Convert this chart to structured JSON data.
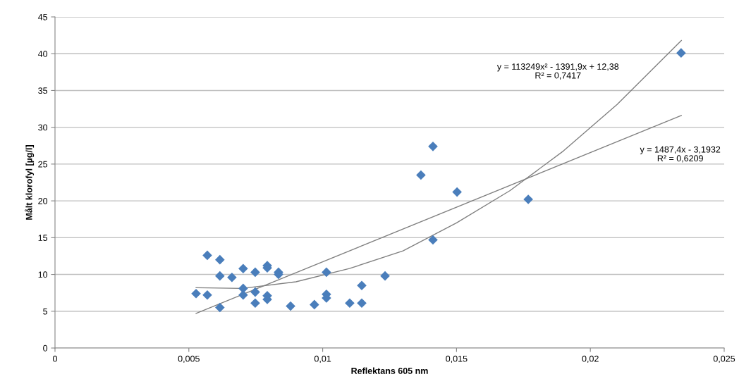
{
  "chart_data": {
    "type": "scatter",
    "xlabel": "Reflektans 605 nm",
    "ylabel": "Målt klorofyl [µg/l]",
    "xlim": [
      0,
      0.025
    ],
    "xticks": [
      0,
      {
        "value": 0.005,
        "label": "0,005"
      },
      {
        "value": 0.01,
        "label": "0,01"
      },
      {
        "value": 0.015,
        "label": "0,015"
      },
      {
        "value": 0.02,
        "label": "0,02"
      },
      {
        "value": 0.025,
        "label": "0,025"
      }
    ],
    "ylim": [
      0,
      45
    ],
    "yticks": [
      0,
      5,
      10,
      15,
      20,
      25,
      30,
      35,
      40,
      45
    ],
    "grid": "y",
    "legend": false,
    "series": [
      {
        "color": "#4a7ebb",
        "marker": "diamond",
        "x": [
          0.00527,
          0.00569,
          0.00569,
          0.00616,
          0.00616,
          0.00616,
          0.00661,
          0.00703,
          0.00703,
          0.00703,
          0.00748,
          0.00748,
          0.00748,
          0.00793,
          0.00793,
          0.00793,
          0.00793,
          0.00835,
          0.00835,
          0.0088,
          0.00969,
          0.01014,
          0.01014,
          0.01014,
          0.01101,
          0.01146,
          0.01146,
          0.01233,
          0.01367,
          0.01412,
          0.01412,
          0.01502,
          0.01768,
          0.02339
        ],
        "values": [
          7.4,
          7.2,
          12.6,
          12.0,
          9.8,
          5.5,
          9.6,
          10.8,
          8.1,
          7.2,
          10.3,
          7.6,
          6.1,
          11.2,
          10.9,
          7.1,
          6.6,
          10.3,
          10.0,
          5.7,
          5.9,
          10.3,
          7.3,
          6.8,
          6.1,
          8.5,
          6.1,
          9.8,
          23.5,
          27.4,
          14.7,
          21.2,
          20.2,
          40.1
        ]
      },
      {
        "type": "line",
        "color": "#808080",
        "marker": "none",
        "line_style": "solid",
        "x": [
          0.00527,
          0.007,
          0.009,
          0.011,
          0.013,
          0.015,
          0.017,
          0.019,
          0.021,
          0.0234
        ],
        "values": [
          8.2,
          8.1,
          9.0,
          10.8,
          13.2,
          17.0,
          21.4,
          26.8,
          33.1,
          41.8
        ]
      },
      {
        "type": "line",
        "color": "#808080",
        "marker": "none",
        "line_style": "solid",
        "x": [
          0.00527,
          0.0234
        ],
        "values": [
          4.7,
          31.6
        ]
      }
    ],
    "annotations": [
      "y = 113249x² - 1391,9x + 12,38\nR² = 0,7417",
      "y = 1487,4x - 3,1932\nR² = 0,6209"
    ]
  }
}
